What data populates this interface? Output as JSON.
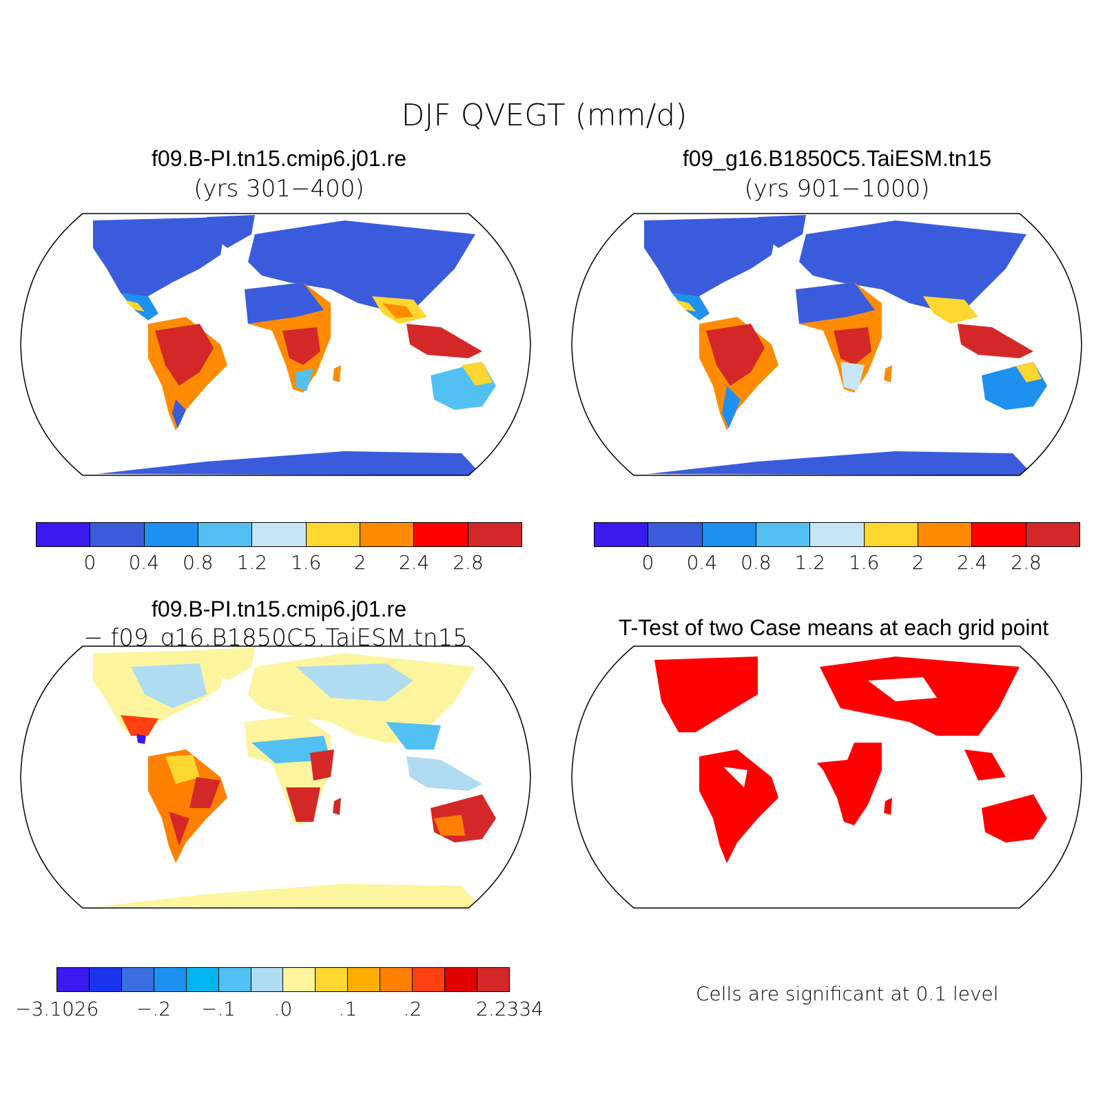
{
  "title": "DJF QVEGT (mm/d)",
  "panels": [
    {
      "title": "f09.B-PI.tn15.cmip6.j01.re",
      "subtitle": "(yrs 301−400)"
    },
    {
      "title": "f09_g16.B1850C5.TaiESM.tn15",
      "subtitle": "(yrs 901−1000)"
    },
    {
      "title": "f09.B-PI.tn15.cmip6.j01.re",
      "subtitle": "− f09_g16.B1850C5.TaiESM.tn15"
    },
    {
      "title": "T-Test of two Case means at each grid point",
      "subtitle": ""
    }
  ],
  "colorbar_abs": {
    "colors": [
      "#3a1aee",
      "#3a5cdc",
      "#1e90f0",
      "#52c0f2",
      "#c6e6f6",
      "#fdd630",
      "#ff8c00",
      "#ff0000",
      "#d42828"
    ],
    "labels": [
      "0",
      "0.4",
      "0.8",
      "1.2",
      "1.6",
      "2",
      "2.4",
      "2.8"
    ]
  },
  "colorbar_diff": {
    "colors": [
      "#3a1aee",
      "#1a34ee",
      "#3a6ee0",
      "#1e90f0",
      "#00b4f0",
      "#52c0f2",
      "#b0dcf2",
      "#fcf59e",
      "#fdd630",
      "#ffad00",
      "#ff8000",
      "#ff4010",
      "#e00000",
      "#d42828"
    ],
    "labels": [
      "−3.1026",
      "−.2",
      "−.1",
      ".0",
      ".1",
      ".2",
      "2.2334"
    ]
  },
  "significance_note": "Cells are significant at 0.1 level",
  "map_colors": {
    "ocean": "#ffffff",
    "land_high_lat_abs": "#3a5cdc",
    "land_diff_base": "#fcf59e",
    "signif": "#ff0000"
  }
}
